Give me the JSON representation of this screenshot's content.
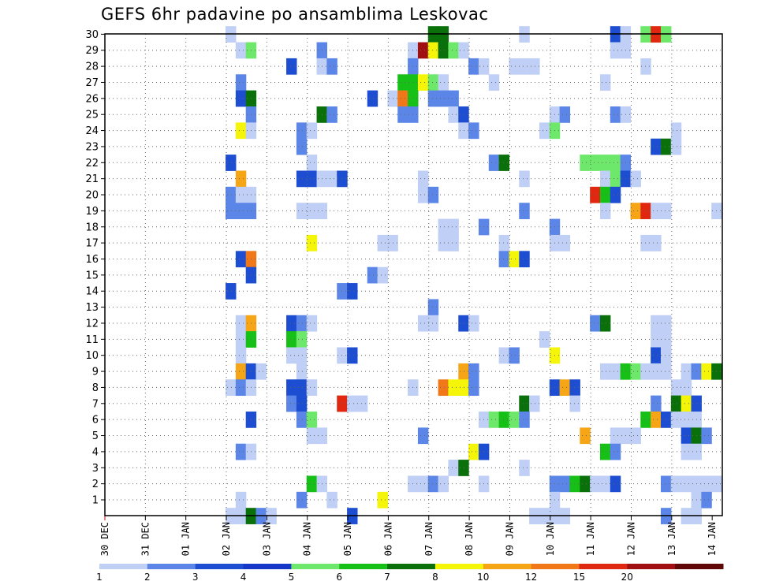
{
  "chart_data": {
    "type": "heatmap",
    "title": "GEFS 6hr padavine po ansamblima Leskovac",
    "xlabel": "",
    "ylabel": "",
    "x_tick_labels": [
      "30 DEC",
      "31 DEC",
      "01 JAN",
      "02 JAN",
      "03 JAN",
      "04 JAN",
      "05 JAN",
      "06 JAN",
      "07 JAN",
      "08 JAN",
      "09 JAN",
      "10 JAN",
      "11 JAN",
      "12 JAN",
      "13 JAN",
      "14 JAN"
    ],
    "y_tick_labels": [
      "1",
      "2",
      "3",
      "4",
      "5",
      "6",
      "7",
      "8",
      "9",
      "10",
      "11",
      "12",
      "13",
      "14",
      "15",
      "16",
      "17",
      "18",
      "19",
      "20",
      "21",
      "22",
      "23",
      "24",
      "25",
      "26",
      "27",
      "28",
      "29",
      "30"
    ],
    "x_unit": "6-hour step (0 = 30 DEC 00z)",
    "x_range": [
      0,
      61
    ],
    "y_range": [
      1,
      30
    ],
    "grid": true,
    "colorbar": {
      "labels": [
        "1",
        "2",
        "3",
        "4",
        "5",
        "6",
        "7",
        "8",
        "10",
        "12",
        "15",
        "20"
      ],
      "colors": [
        "#bfcff5",
        "#5b86e8",
        "#1d4ed2",
        "#1638c8",
        "#6ee86a",
        "#16c016",
        "#0a700a",
        "#f5f50a",
        "#f5a515",
        "#f07818",
        "#e02810",
        "#a01010",
        "#600808"
      ]
    },
    "cells": [
      [
        30,
        12,
        0
      ],
      [
        30,
        32,
        6
      ],
      [
        30,
        33,
        6
      ],
      [
        30,
        41,
        0
      ],
      [
        30,
        50,
        2
      ],
      [
        30,
        51,
        0
      ],
      [
        30,
        53,
        4
      ],
      [
        30,
        54,
        10
      ],
      [
        30,
        55,
        4
      ],
      [
        29,
        13,
        0
      ],
      [
        29,
        14,
        4
      ],
      [
        29,
        21,
        1
      ],
      [
        29,
        30,
        0
      ],
      [
        29,
        31,
        11
      ],
      [
        29,
        32,
        7
      ],
      [
        29,
        33,
        6
      ],
      [
        29,
        34,
        4
      ],
      [
        29,
        35,
        0
      ],
      [
        29,
        50,
        0
      ],
      [
        29,
        51,
        0
      ],
      [
        28,
        18,
        2
      ],
      [
        28,
        21,
        0
      ],
      [
        28,
        22,
        1
      ],
      [
        28,
        30,
        1
      ],
      [
        28,
        36,
        1
      ],
      [
        28,
        37,
        0
      ],
      [
        28,
        40,
        0
      ],
      [
        28,
        41,
        0
      ],
      [
        28,
        42,
        0
      ],
      [
        28,
        53,
        0
      ],
      [
        27,
        13,
        1
      ],
      [
        27,
        29,
        5
      ],
      [
        27,
        30,
        5
      ],
      [
        27,
        31,
        7
      ],
      [
        27,
        32,
        4
      ],
      [
        27,
        33,
        0
      ],
      [
        27,
        38,
        0
      ],
      [
        27,
        49,
        0
      ],
      [
        26,
        13,
        2
      ],
      [
        26,
        14,
        6
      ],
      [
        26,
        26,
        2
      ],
      [
        26,
        28,
        0
      ],
      [
        26,
        29,
        9
      ],
      [
        26,
        30,
        5
      ],
      [
        26,
        32,
        1
      ],
      [
        26,
        33,
        1
      ],
      [
        26,
        34,
        1
      ],
      [
        25,
        14,
        1
      ],
      [
        25,
        21,
        6
      ],
      [
        25,
        22,
        1
      ],
      [
        25,
        29,
        1
      ],
      [
        25,
        30,
        1
      ],
      [
        25,
        34,
        0
      ],
      [
        25,
        35,
        2
      ],
      [
        25,
        44,
        0
      ],
      [
        25,
        45,
        1
      ],
      [
        25,
        50,
        1
      ],
      [
        25,
        51,
        0
      ],
      [
        24,
        13,
        7
      ],
      [
        24,
        14,
        0
      ],
      [
        24,
        19,
        1
      ],
      [
        24,
        20,
        0
      ],
      [
        24,
        35,
        0
      ],
      [
        24,
        36,
        1
      ],
      [
        24,
        43,
        0
      ],
      [
        24,
        44,
        4
      ],
      [
        24,
        56,
        0
      ],
      [
        23,
        19,
        1
      ],
      [
        23,
        54,
        2
      ],
      [
        23,
        55,
        6
      ],
      [
        23,
        56,
        0
      ],
      [
        22,
        12,
        2
      ],
      [
        22,
        20,
        0
      ],
      [
        22,
        38,
        1
      ],
      [
        22,
        39,
        6
      ],
      [
        22,
        47,
        4
      ],
      [
        22,
        48,
        4
      ],
      [
        22,
        49,
        4
      ],
      [
        22,
        50,
        4
      ],
      [
        22,
        51,
        1
      ],
      [
        21,
        13,
        8
      ],
      [
        21,
        19,
        2
      ],
      [
        21,
        20,
        2
      ],
      [
        21,
        21,
        0
      ],
      [
        21,
        22,
        0
      ],
      [
        21,
        23,
        2
      ],
      [
        21,
        31,
        0
      ],
      [
        21,
        41,
        0
      ],
      [
        21,
        49,
        0
      ],
      [
        21,
        50,
        4
      ],
      [
        21,
        51,
        2
      ],
      [
        21,
        52,
        0
      ],
      [
        20,
        12,
        1
      ],
      [
        20,
        13,
        0
      ],
      [
        20,
        14,
        0
      ],
      [
        20,
        31,
        0
      ],
      [
        20,
        32,
        1
      ],
      [
        20,
        48,
        10
      ],
      [
        20,
        49,
        5
      ],
      [
        20,
        50,
        2
      ],
      [
        19,
        12,
        1
      ],
      [
        19,
        13,
        1
      ],
      [
        19,
        14,
        1
      ],
      [
        19,
        19,
        0
      ],
      [
        19,
        20,
        0
      ],
      [
        19,
        21,
        0
      ],
      [
        19,
        41,
        1
      ],
      [
        19,
        49,
        0
      ],
      [
        19,
        52,
        8
      ],
      [
        19,
        53,
        10
      ],
      [
        19,
        54,
        0
      ],
      [
        19,
        55,
        0
      ],
      [
        19,
        60,
        0
      ],
      [
        18,
        33,
        0
      ],
      [
        18,
        34,
        0
      ],
      [
        18,
        37,
        1
      ],
      [
        18,
        44,
        1
      ],
      [
        17,
        20,
        7
      ],
      [
        17,
        27,
        0
      ],
      [
        17,
        28,
        0
      ],
      [
        17,
        33,
        0
      ],
      [
        17,
        34,
        0
      ],
      [
        17,
        39,
        0
      ],
      [
        17,
        44,
        0
      ],
      [
        17,
        45,
        0
      ],
      [
        17,
        53,
        0
      ],
      [
        17,
        54,
        0
      ],
      [
        16,
        13,
        2
      ],
      [
        16,
        14,
        9
      ],
      [
        16,
        39,
        1
      ],
      [
        16,
        40,
        7
      ],
      [
        16,
        41,
        2
      ],
      [
        15,
        14,
        2
      ],
      [
        15,
        26,
        1
      ],
      [
        15,
        27,
        0
      ],
      [
        14,
        12,
        2
      ],
      [
        14,
        23,
        1
      ],
      [
        14,
        24,
        2
      ],
      [
        13,
        32,
        1
      ],
      [
        12,
        13,
        0
      ],
      [
        12,
        14,
        8
      ],
      [
        12,
        18,
        2
      ],
      [
        12,
        19,
        1
      ],
      [
        12,
        20,
        0
      ],
      [
        12,
        31,
        0
      ],
      [
        12,
        32,
        0
      ],
      [
        12,
        35,
        2
      ],
      [
        12,
        36,
        0
      ],
      [
        12,
        48,
        1
      ],
      [
        12,
        49,
        6
      ],
      [
        12,
        54,
        0
      ],
      [
        12,
        55,
        0
      ],
      [
        11,
        13,
        0
      ],
      [
        11,
        14,
        5
      ],
      [
        11,
        18,
        5
      ],
      [
        11,
        19,
        4
      ],
      [
        11,
        43,
        0
      ],
      [
        11,
        54,
        0
      ],
      [
        11,
        55,
        0
      ],
      [
        10,
        13,
        0
      ],
      [
        10,
        18,
        0
      ],
      [
        10,
        19,
        0
      ],
      [
        10,
        23,
        0
      ],
      [
        10,
        24,
        2
      ],
      [
        10,
        39,
        0
      ],
      [
        10,
        40,
        1
      ],
      [
        10,
        44,
        7
      ],
      [
        10,
        54,
        2
      ],
      [
        10,
        55,
        0
      ],
      [
        9,
        13,
        8
      ],
      [
        9,
        14,
        2
      ],
      [
        9,
        15,
        0
      ],
      [
        9,
        19,
        0
      ],
      [
        9,
        35,
        8
      ],
      [
        9,
        36,
        1
      ],
      [
        9,
        49,
        0
      ],
      [
        9,
        50,
        0
      ],
      [
        9,
        51,
        5
      ],
      [
        9,
        52,
        4
      ],
      [
        9,
        53,
        0
      ],
      [
        9,
        54,
        0
      ],
      [
        9,
        55,
        0
      ],
      [
        9,
        57,
        0
      ],
      [
        9,
        58,
        1
      ],
      [
        9,
        59,
        7
      ],
      [
        9,
        60,
        6
      ],
      [
        8,
        12,
        0
      ],
      [
        8,
        13,
        1
      ],
      [
        8,
        14,
        0
      ],
      [
        8,
        18,
        2
      ],
      [
        8,
        19,
        2
      ],
      [
        8,
        20,
        0
      ],
      [
        8,
        30,
        0
      ],
      [
        8,
        33,
        9
      ],
      [
        8,
        34,
        7
      ],
      [
        8,
        35,
        7
      ],
      [
        8,
        36,
        1
      ],
      [
        8,
        44,
        2
      ],
      [
        8,
        45,
        8
      ],
      [
        8,
        46,
        2
      ],
      [
        8,
        56,
        0
      ],
      [
        8,
        57,
        0
      ],
      [
        7,
        18,
        1
      ],
      [
        7,
        19,
        2
      ],
      [
        7,
        23,
        10
      ],
      [
        7,
        24,
        0
      ],
      [
        7,
        25,
        0
      ],
      [
        7,
        41,
        6
      ],
      [
        7,
        42,
        0
      ],
      [
        7,
        46,
        0
      ],
      [
        7,
        54,
        1
      ],
      [
        7,
        56,
        6
      ],
      [
        7,
        57,
        7
      ],
      [
        7,
        58,
        2
      ],
      [
        6,
        14,
        2
      ],
      [
        6,
        19,
        1
      ],
      [
        6,
        20,
        4
      ],
      [
        6,
        37,
        0
      ],
      [
        6,
        38,
        4
      ],
      [
        6,
        39,
        5
      ],
      [
        6,
        40,
        4
      ],
      [
        6,
        41,
        1
      ],
      [
        6,
        53,
        5
      ],
      [
        6,
        54,
        8
      ],
      [
        6,
        55,
        2
      ],
      [
        6,
        56,
        0
      ],
      [
        6,
        57,
        0
      ],
      [
        6,
        58,
        0
      ],
      [
        5,
        20,
        0
      ],
      [
        5,
        21,
        0
      ],
      [
        5,
        31,
        1
      ],
      [
        5,
        47,
        8
      ],
      [
        5,
        50,
        0
      ],
      [
        5,
        51,
        0
      ],
      [
        5,
        52,
        0
      ],
      [
        5,
        57,
        2
      ],
      [
        5,
        58,
        6
      ],
      [
        5,
        59,
        1
      ],
      [
        4,
        13,
        1
      ],
      [
        4,
        14,
        0
      ],
      [
        4,
        36,
        7
      ],
      [
        4,
        37,
        2
      ],
      [
        4,
        49,
        5
      ],
      [
        4,
        50,
        1
      ],
      [
        4,
        57,
        0
      ],
      [
        4,
        58,
        0
      ],
      [
        3,
        34,
        0
      ],
      [
        3,
        35,
        6
      ],
      [
        3,
        41,
        0
      ],
      [
        2,
        20,
        5
      ],
      [
        2,
        21,
        0
      ],
      [
        2,
        30,
        0
      ],
      [
        2,
        31,
        0
      ],
      [
        2,
        32,
        1
      ],
      [
        2,
        33,
        0
      ],
      [
        2,
        37,
        0
      ],
      [
        2,
        44,
        1
      ],
      [
        2,
        45,
        1
      ],
      [
        2,
        46,
        5
      ],
      [
        2,
        47,
        6
      ],
      [
        2,
        48,
        0
      ],
      [
        2,
        49,
        0
      ],
      [
        2,
        50,
        2
      ],
      [
        2,
        55,
        1
      ],
      [
        2,
        56,
        0
      ],
      [
        2,
        57,
        0
      ],
      [
        2,
        58,
        0
      ],
      [
        2,
        59,
        0
      ],
      [
        2,
        60,
        0
      ],
      [
        1,
        13,
        0
      ],
      [
        1,
        19,
        1
      ],
      [
        1,
        22,
        0
      ],
      [
        1,
        27,
        7
      ],
      [
        1,
        44,
        0
      ],
      [
        1,
        58,
        0
      ],
      [
        1,
        59,
        1
      ],
      [
        0,
        12,
        0
      ],
      [
        0,
        13,
        0
      ],
      [
        0,
        14,
        6
      ],
      [
        0,
        15,
        1
      ],
      [
        0,
        16,
        0
      ],
      [
        0,
        24,
        2
      ],
      [
        0,
        42,
        0
      ],
      [
        0,
        43,
        0
      ],
      [
        0,
        44,
        0
      ],
      [
        0,
        45,
        0
      ],
      [
        0,
        55,
        1
      ],
      [
        0,
        57,
        0
      ],
      [
        0,
        58,
        0
      ]
    ]
  }
}
